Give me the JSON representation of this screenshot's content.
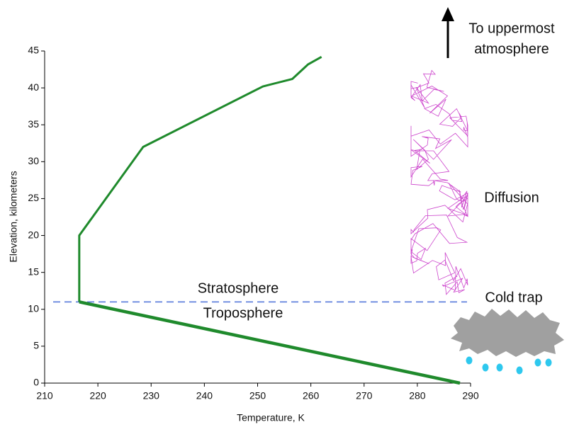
{
  "chart_data": {
    "type": "line",
    "xlabel": "Temperature, K",
    "ylabel": "Elevation, kilometers",
    "xlim": [
      210,
      290
    ],
    "xticks": [
      210,
      220,
      230,
      240,
      250,
      260,
      270,
      280,
      290
    ],
    "ylim": [
      0,
      45
    ],
    "yticks": [
      0,
      5,
      10,
      15,
      20,
      25,
      30,
      35,
      40,
      45
    ],
    "series": [
      {
        "color": "#1f8a2c",
        "x": [
          288,
          216.5
        ],
        "values": [
          0,
          11
        ]
      },
      {
        "color": "#1f8a2c",
        "x": [
          216.5,
          216.5,
          228.5,
          251,
          256.5,
          259.5,
          262
        ],
        "values": [
          11,
          20,
          32,
          40.2,
          41.2,
          43.2,
          44.2
        ]
      }
    ],
    "reference_line": {
      "y": 11,
      "color": "#4a6fd8"
    },
    "annotations": [
      "Stratosphere",
      "Troposphere",
      "To uppermost",
      "atmosphere",
      "Diffusion",
      "Cold trap"
    ]
  }
}
